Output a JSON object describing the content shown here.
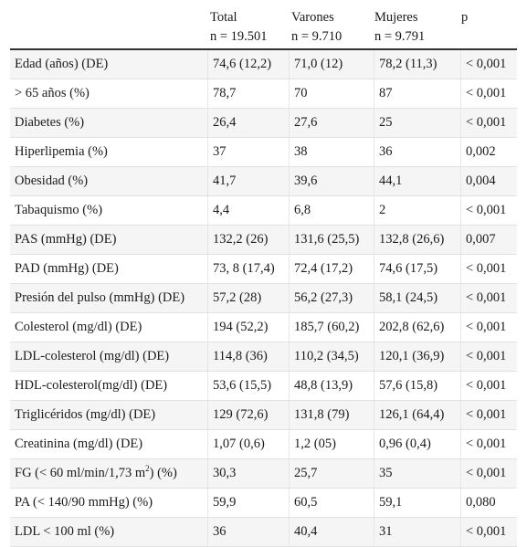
{
  "header": {
    "cols": [
      {
        "l1": "",
        "l2": ""
      },
      {
        "l1": "Total",
        "l2": "n = 19.501"
      },
      {
        "l1": "Varones",
        "l2": "n = 9.710"
      },
      {
        "l1": "Mujeres",
        "l2": "n = 9.791"
      },
      {
        "l1": "p",
        "l2": ""
      }
    ]
  },
  "rows": [
    {
      "label": "Edad (años) (DE)",
      "total": "74,6 (12,2)",
      "varones": "71,0 (12)",
      "mujeres": "78,2 (11,3)",
      "p": "< 0,001"
    },
    {
      "label": "> 65 años (%)",
      "total": "78,7",
      "varones": "70",
      "mujeres": "87",
      "p": "< 0,001"
    },
    {
      "label": "Diabetes (%)",
      "total": "26,4",
      "varones": "27,6",
      "mujeres": "25",
      "p": "< 0,001"
    },
    {
      "label": "Hiperlipemia (%)",
      "total": "37",
      "varones": "38",
      "mujeres": "36",
      "p": "0,002"
    },
    {
      "label": "Obesidad (%)",
      "total": "41,7",
      "varones": "39,6",
      "mujeres": "44,1",
      "p": "0,004"
    },
    {
      "label": "Tabaquismo (%)",
      "total": "4,4",
      "varones": "6,8",
      "mujeres": "2",
      "p": "< 0,001"
    },
    {
      "label": "PAS (mmHg) (DE)",
      "total": "132,2 (26)",
      "varones": "131,6 (25,5)",
      "mujeres": "132,8 (26,6)",
      "p": "0,007"
    },
    {
      "label": "PAD (mmHg) (DE)",
      "total": "73, 8 (17,4)",
      "varones": "72,4 (17,2)",
      "mujeres": "74,6 (17,5)",
      "p": "< 0,001"
    },
    {
      "label": "Presión del pulso (mmHg) (DE)",
      "total": "57,2 (28)",
      "varones": "56,2 (27,3)",
      "mujeres": "58,1 (24,5)",
      "p": "< 0,001"
    },
    {
      "label": "Colesterol (mg/dl) (DE)",
      "total": "194 (52,2)",
      "varones": "185,7 (60,2)",
      "mujeres": "202,8 (62,6)",
      "p": "< 0,001"
    },
    {
      "label": "LDL-colesterol (mg/dl) (DE)",
      "total": "114,8 (36)",
      "varones": "110,2 (34,5)",
      "mujeres": "120,1 (36,9)",
      "p": "< 0,001"
    },
    {
      "label": "HDL-colesterol(mg/dl) (DE)",
      "total": "53,6 (15,5)",
      "varones": "48,8 (13,9)",
      "mujeres": "57,6 (15,8)",
      "p": "< 0,001"
    },
    {
      "label": "Triglicéridos (mg/dl) (DE)",
      "total": "129 (72,6)",
      "varones": "131,8 (79)",
      "mujeres": "126,1 (64,4)",
      "p": "< 0,001"
    },
    {
      "label": "Creatinina (mg/dl) (DE)",
      "total": "1,07 (0,6)",
      "varones": "1,2 (05)",
      "mujeres": "0,96 (0,4)",
      "p": "< 0,001"
    },
    {
      "label": "FG (< 60 ml/min/1,73 m",
      "label_sup": "2",
      "label_after": ") (%)",
      "total": "30,3",
      "varones": "25,7",
      "mujeres": "35",
      "p": "< 0,001"
    },
    {
      "label": "PA (< 140/90 mmHg) (%)",
      "total": "59,9",
      "varones": "60,5",
      "mujeres": "59,1",
      "p": "0,080"
    },
    {
      "label": "LDL < 100 ml (%)",
      "total": "36",
      "varones": "40,4",
      "mujeres": "31",
      "p": "< 0,001"
    }
  ]
}
